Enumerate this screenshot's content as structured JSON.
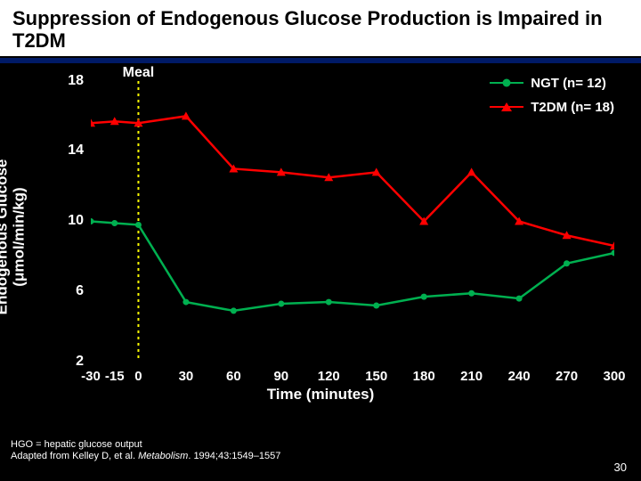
{
  "title": "Suppression of Endogenous Glucose Production is Impaired in T2DM",
  "chart": {
    "type": "line",
    "ylabel_line1": "Endogenous Glucose",
    "ylabel_line2": "(μmol/min/kg)",
    "xlabel": "Time (minutes)",
    "meal_label": "Meal",
    "meal_x": 0,
    "xlim": [
      -30,
      300
    ],
    "ylim": [
      2,
      18
    ],
    "xticks": [
      -30,
      -15,
      0,
      30,
      60,
      90,
      120,
      150,
      180,
      210,
      240,
      270,
      300
    ],
    "yticks": [
      2,
      6,
      10,
      14,
      18
    ],
    "grid": false,
    "background": "#000000",
    "axis_color": "#ffffff",
    "meal_line_color": "#ffff00",
    "meal_line_dash": "3,4",
    "line_width": 2.5,
    "marker_size": 7,
    "series": [
      {
        "name": "NGT (n= 12)",
        "color": "#00b050",
        "marker": "circle",
        "x": [
          -30,
          -15,
          0,
          30,
          60,
          90,
          120,
          150,
          180,
          210,
          240,
          270,
          300
        ],
        "y": [
          10.0,
          9.9,
          9.8,
          5.4,
          4.9,
          5.3,
          5.4,
          5.2,
          5.7,
          5.9,
          5.6,
          7.6,
          8.2
        ]
      },
      {
        "name": "T2DM (n= 18)",
        "color": "#ff0000",
        "marker": "triangle",
        "x": [
          -30,
          -15,
          0,
          30,
          60,
          90,
          120,
          150,
          180,
          210,
          240,
          270,
          300
        ],
        "y": [
          15.6,
          15.7,
          15.6,
          16.0,
          13.0,
          12.8,
          12.5,
          12.8,
          10.0,
          12.8,
          10.0,
          9.2,
          8.6
        ]
      }
    ]
  },
  "legend": {
    "items": [
      {
        "label": "NGT (n= 12)",
        "color": "#00b050",
        "marker": "circle"
      },
      {
        "label": "T2DM (n= 18)",
        "color": "#ff0000",
        "marker": "triangle"
      }
    ]
  },
  "footnote_line1": "HGO = hepatic glucose output",
  "footnote_line2a": "Adapted from Kelley D, et al. ",
  "footnote_line2b": "Metabolism",
  "footnote_line2c": ". 1994;43:1549–1557",
  "slide_number": "30"
}
